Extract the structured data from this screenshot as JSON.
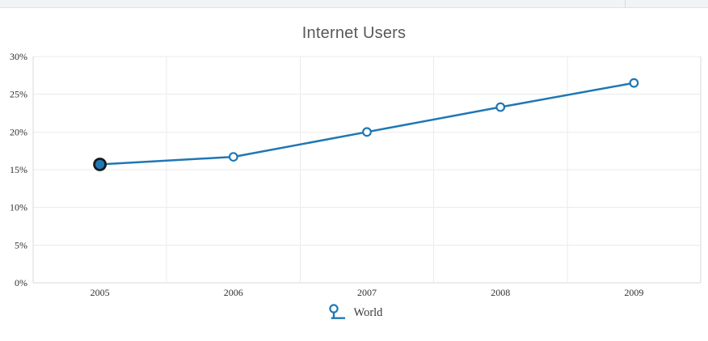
{
  "window": {
    "tabstrip_visible": true
  },
  "chart_data": {
    "type": "line",
    "title": "Internet Users",
    "x": [
      "2005",
      "2006",
      "2007",
      "2008",
      "2009"
    ],
    "series": [
      {
        "name": "World",
        "values": [
          15.7,
          16.7,
          20.0,
          23.3,
          26.5
        ]
      }
    ],
    "xlabel": "",
    "ylabel": "",
    "ylim": [
      0,
      30
    ],
    "yticks": [
      0,
      5,
      10,
      15,
      20,
      25,
      30
    ],
    "ytick_labels": [
      "0%",
      "5%",
      "10%",
      "15%",
      "20%",
      "25%",
      "30%"
    ],
    "grid": true,
    "legend_position": "bottom",
    "legend": [
      "World"
    ],
    "highlighted_point": {
      "x": "2005",
      "series": "World",
      "value": 15.7
    }
  },
  "colors": {
    "line": "#1f77b4",
    "highlight_ring": "#17191c",
    "marker_fill": "#ffffff",
    "grid": "#ebebeb",
    "frame": "#d9d9d9",
    "tick_label": "#303030",
    "title": "#59595b"
  }
}
